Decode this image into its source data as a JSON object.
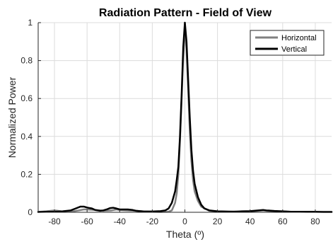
{
  "chart_data": {
    "type": "line",
    "title": "Radiation Pattern - Field of View",
    "xlabel": "Theta (º)",
    "ylabel": "Normalized Power",
    "xlim": [
      -90,
      90
    ],
    "ylim": [
      0,
      1
    ],
    "xticks": [
      -80,
      -60,
      -40,
      -20,
      0,
      20,
      40,
      60,
      80
    ],
    "yticks": [
      0,
      0.2,
      0.4,
      0.6,
      0.8,
      1
    ],
    "xtick_labels": [
      "-80",
      "-60",
      "-40",
      "-20",
      "0",
      "20",
      "40",
      "60",
      "80"
    ],
    "ytick_labels": [
      "0",
      "0.2",
      "0.4",
      "0.6",
      "0.8",
      "1"
    ],
    "grid": true,
    "legend_position": "top-right",
    "series": [
      {
        "name": "Horizontal",
        "color": "#808080",
        "x": [
          -90,
          -85,
          -80,
          -78,
          -75,
          -70,
          -65,
          -62,
          -60,
          -55,
          -50,
          -45,
          -42,
          -40,
          -35,
          -30,
          -25,
          -20,
          -15,
          -10,
          -8,
          -6,
          -5,
          -4,
          -3,
          -2,
          -1,
          0,
          1,
          2,
          3,
          4,
          5,
          6,
          8,
          10,
          15,
          20,
          25,
          30,
          35,
          40,
          45,
          48,
          50,
          55,
          60,
          65,
          70,
          75,
          80,
          85,
          90
        ],
        "y": [
          0.002,
          0.005,
          0.01,
          0.008,
          0.004,
          0.003,
          0.01,
          0.015,
          0.015,
          0.012,
          0.008,
          0.01,
          0.015,
          0.012,
          0.01,
          0.008,
          0.004,
          0.003,
          0.002,
          0.003,
          0.01,
          0.05,
          0.1,
          0.2,
          0.38,
          0.6,
          0.82,
          0.97,
          0.86,
          0.65,
          0.43,
          0.27,
          0.17,
          0.11,
          0.06,
          0.03,
          0.008,
          0.004,
          0.003,
          0.004,
          0.003,
          0.005,
          0.008,
          0.01,
          0.008,
          0.005,
          0.004,
          0.003,
          0.003,
          0.002,
          0.002,
          0.002,
          0.002
        ]
      },
      {
        "name": "Vertical",
        "color": "#000000",
        "x": [
          -90,
          -85,
          -80,
          -75,
          -70,
          -67,
          -64,
          -62,
          -60,
          -57,
          -55,
          -52,
          -50,
          -48,
          -46,
          -44,
          -42,
          -40,
          -37,
          -35,
          -32,
          -30,
          -25,
          -20,
          -15,
          -12,
          -10,
          -8,
          -6,
          -5,
          -4,
          -3,
          -2,
          -1,
          0,
          1,
          2,
          3,
          4,
          5,
          6,
          8,
          10,
          12,
          15,
          20,
          25,
          30,
          35,
          40,
          45,
          48,
          50,
          55,
          60,
          65,
          70,
          75,
          80,
          85,
          90
        ],
        "y": [
          0.002,
          0.003,
          0.003,
          0.005,
          0.01,
          0.02,
          0.03,
          0.03,
          0.025,
          0.02,
          0.012,
          0.008,
          0.01,
          0.015,
          0.022,
          0.024,
          0.02,
          0.015,
          0.015,
          0.015,
          0.012,
          0.008,
          0.004,
          0.004,
          0.006,
          0.01,
          0.02,
          0.05,
          0.11,
          0.17,
          0.24,
          0.4,
          0.62,
          0.87,
          1.0,
          0.9,
          0.7,
          0.5,
          0.33,
          0.22,
          0.15,
          0.08,
          0.04,
          0.02,
          0.01,
          0.005,
          0.004,
          0.003,
          0.005,
          0.006,
          0.01,
          0.012,
          0.01,
          0.007,
          0.005,
          0.003,
          0.003,
          0.003,
          0.003,
          0.002,
          0.002
        ]
      }
    ]
  }
}
